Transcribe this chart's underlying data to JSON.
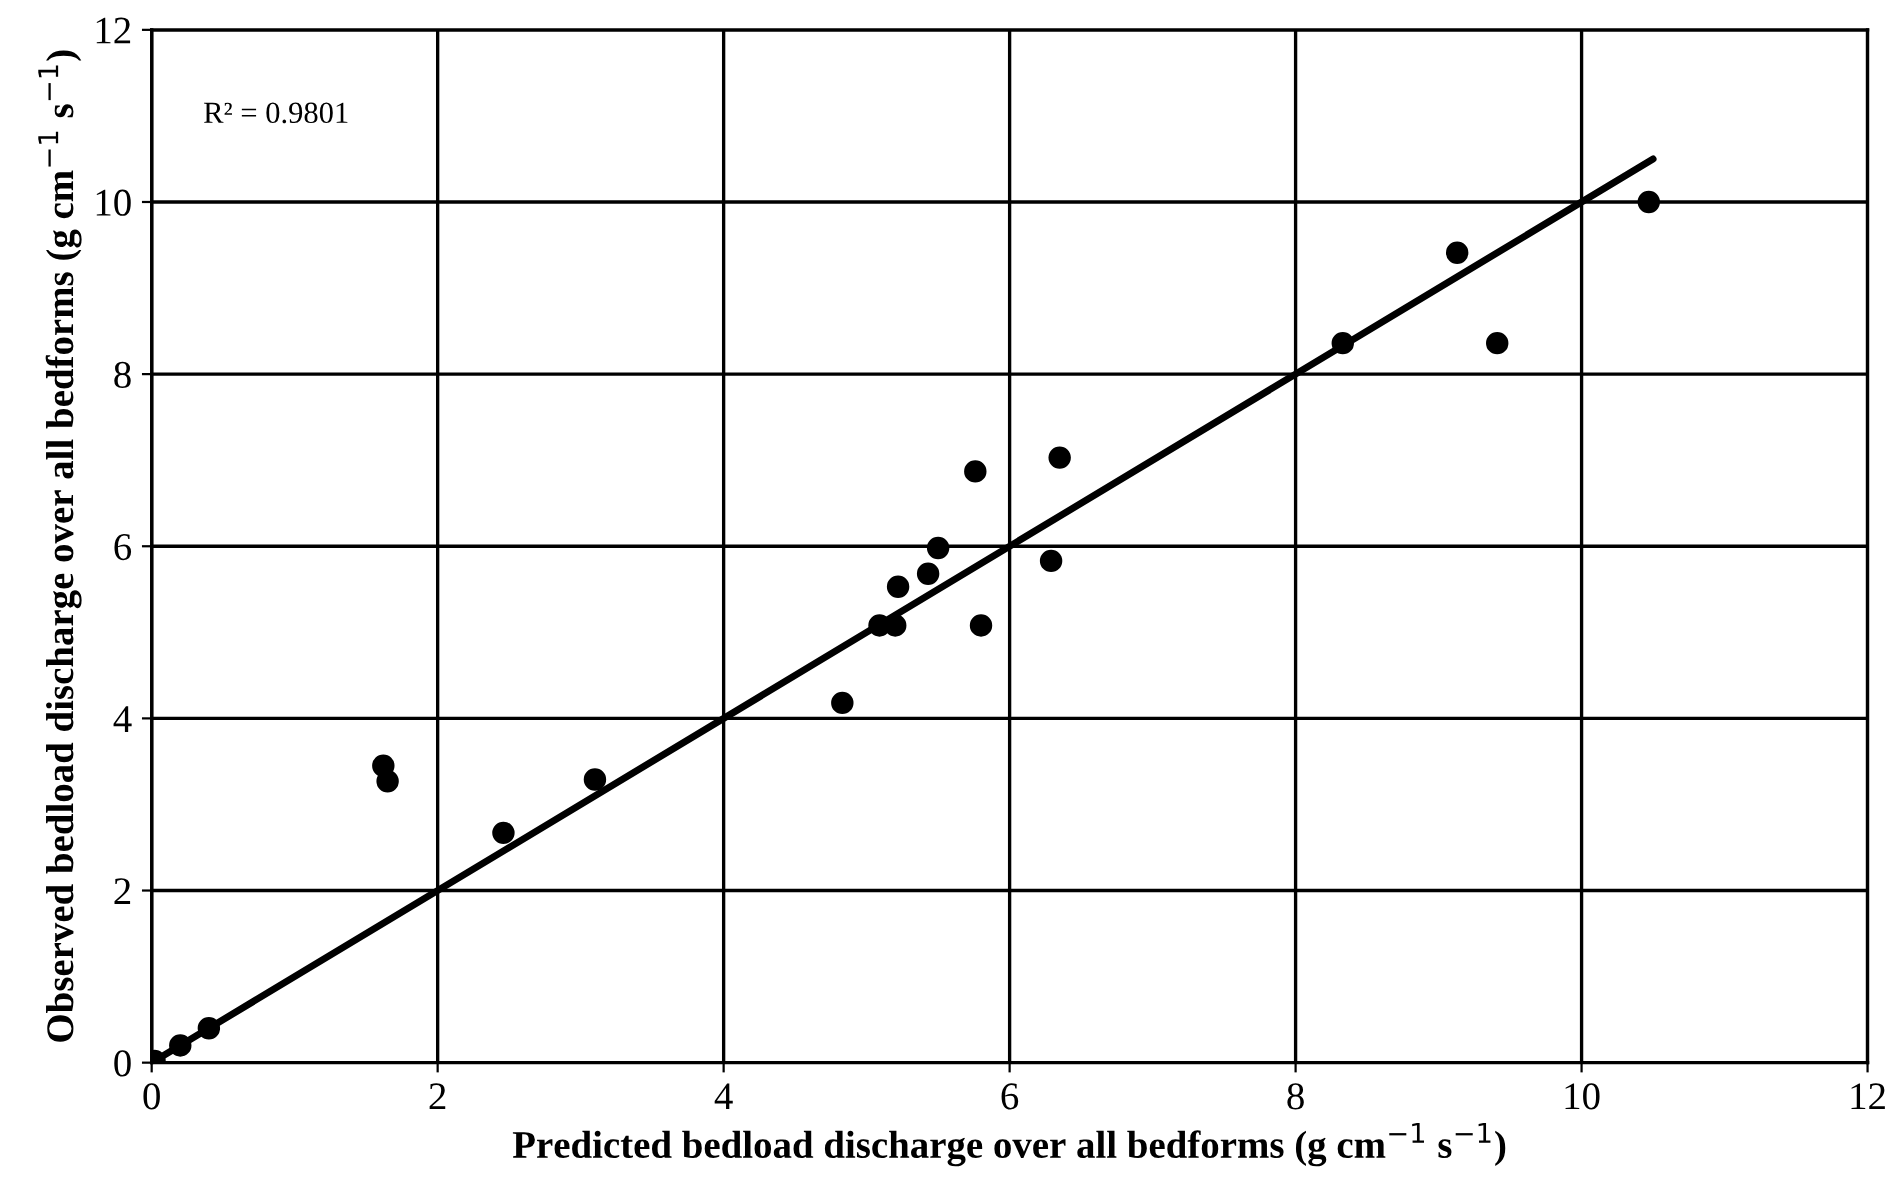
{
  "chart_data": {
    "type": "scatter",
    "xlabel": "Predicted bedload discharge over all bedforms (g cm$^{−1}$ s$^{−1}$)",
    "ylabel": "Observed bedload discharge over all bedforms (g cm$^{−1}$ s$^{−1}$)",
    "annotations": [
      "R² = 0.9801"
    ],
    "series": [
      {
        "color": "#000000",
        "marker": "circle",
        "x": [
          0.02,
          0.2,
          0.4,
          1.62,
          1.65,
          2.46,
          3.1,
          4.83,
          5.09,
          5.2,
          5.22,
          5.43,
          5.5,
          5.76,
          5.8,
          6.29,
          6.35,
          8.33,
          9.13,
          9.41,
          10.47
        ],
        "values": [
          0.02,
          0.2,
          0.4,
          3.45,
          3.27,
          2.67,
          3.29,
          4.18,
          5.08,
          5.08,
          5.53,
          5.68,
          5.98,
          6.87,
          5.08,
          5.83,
          7.03,
          8.36,
          9.41,
          8.36,
          10.0
        ]
      },
      {
        "type": "line",
        "color": "#000000",
        "marker": "none",
        "line_style": "solid",
        "x": [
          0,
          10.5
        ],
        "values": [
          0,
          10.5
        ]
      }
    ],
    "xlim": [
      0,
      12
    ],
    "ylim": [
      0,
      12
    ],
    "xticks": [
      0,
      2,
      4,
      6,
      8,
      10,
      12
    ],
    "yticks": [
      0,
      2,
      4,
      6,
      8,
      10,
      12
    ],
    "grid": true,
    "legend": false
  }
}
